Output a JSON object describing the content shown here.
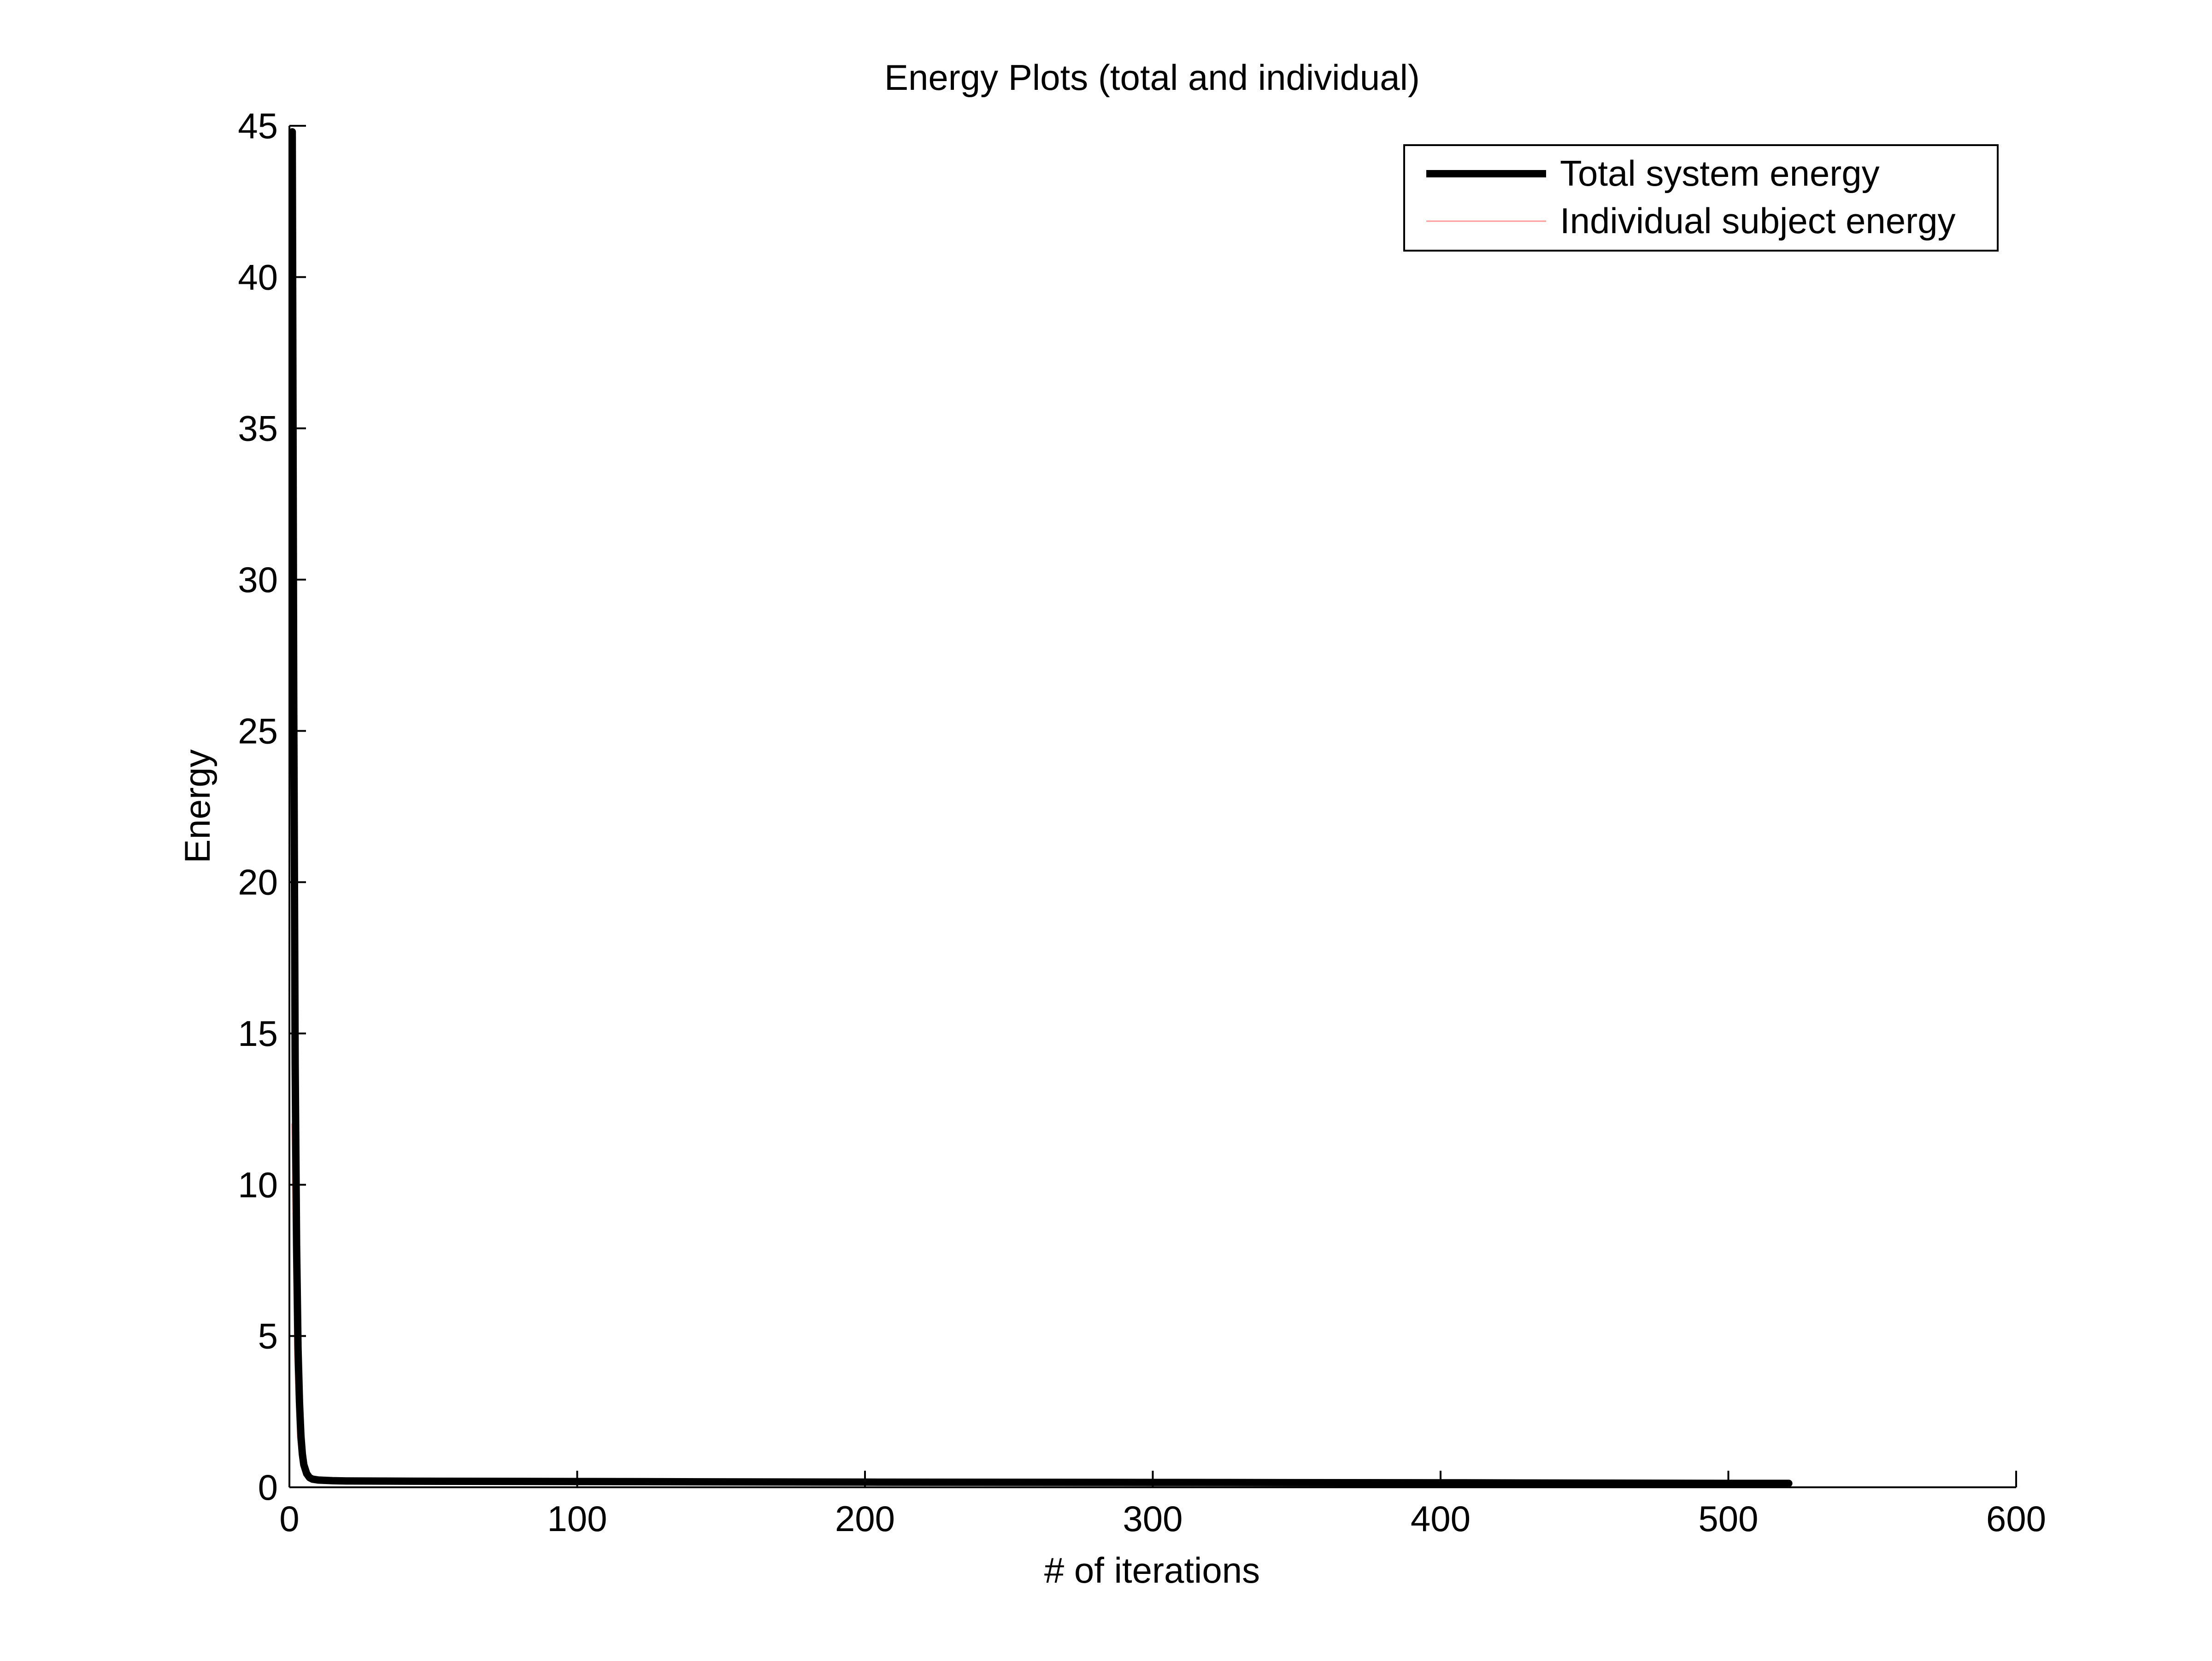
{
  "chart_data": {
    "type": "line",
    "title": "Energy Plots (total and individual)",
    "xlabel": "# of iterations",
    "ylabel": "Energy",
    "xlim": [
      0,
      600
    ],
    "ylim": [
      0,
      45
    ],
    "x_ticks": [
      0,
      100,
      200,
      300,
      400,
      500,
      600
    ],
    "y_ticks": [
      0,
      5,
      10,
      15,
      20,
      25,
      30,
      35,
      40,
      45
    ],
    "grid": false,
    "legend_position": "top-right",
    "series": [
      {
        "name": "Individual subject energy",
        "color": "#ff9999",
        "style": "thin",
        "x": [
          1,
          2,
          3,
          4,
          5,
          6,
          8,
          10,
          20,
          50,
          100,
          200,
          300,
          400,
          500,
          521
        ],
        "y": [
          12.0,
          4.2,
          1.6,
          0.8,
          0.45,
          0.3,
          0.2,
          0.17,
          0.16,
          0.15,
          0.14,
          0.13,
          0.12,
          0.11,
          0.1,
          0.1
        ]
      },
      {
        "name": "",
        "color": "#0a6b0a",
        "style": "thin",
        "x": [
          1,
          2,
          3,
          4,
          5,
          6,
          8,
          10,
          20,
          50,
          100,
          200,
          300,
          400,
          500,
          521
        ],
        "y": [
          38.0,
          12.0,
          3.5,
          1.2,
          0.6,
          0.35,
          0.22,
          0.18,
          0.16,
          0.15,
          0.14,
          0.13,
          0.12,
          0.11,
          0.1,
          0.1
        ]
      },
      {
        "name": "Total system energy",
        "color": "#000000",
        "style": "thick",
        "x": [
          1,
          1.5,
          2,
          2.5,
          3,
          3.5,
          4,
          4.5,
          5,
          6,
          7,
          8,
          10,
          15,
          20,
          50,
          100,
          200,
          300,
          400,
          500,
          521
        ],
        "y": [
          44.8,
          26.0,
          14.0,
          8.0,
          4.6,
          2.8,
          1.7,
          1.1,
          0.75,
          0.45,
          0.32,
          0.27,
          0.24,
          0.22,
          0.21,
          0.2,
          0.19,
          0.17,
          0.16,
          0.15,
          0.13,
          0.13
        ]
      }
    ]
  }
}
